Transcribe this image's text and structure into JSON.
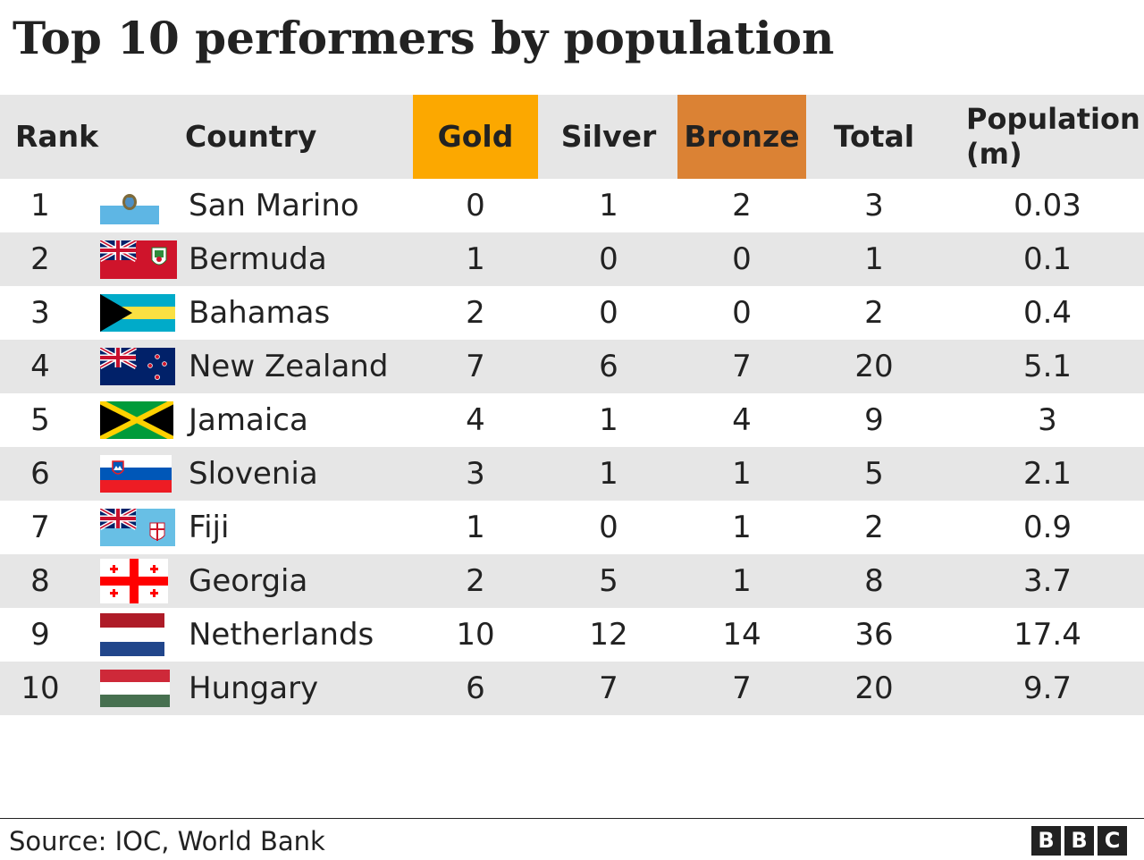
{
  "title": "Top 10 performers by population",
  "headers": {
    "rank": "Rank",
    "country": "Country",
    "gold": "Gold",
    "silver": "Silver",
    "bronze": "Bronze",
    "total": "Total",
    "population_line1": "Population",
    "population_line2": "(m)"
  },
  "colors": {
    "gold_header": "#fca800",
    "bronze_header": "#db8234",
    "row_shade": "#e6e6e6",
    "text": "#222222"
  },
  "chart_data": {
    "type": "table",
    "title": "Top 10 performers by population",
    "columns": [
      "Rank",
      "Country",
      "Gold",
      "Silver",
      "Bronze",
      "Total",
      "Population (m)"
    ],
    "rows": [
      {
        "rank": "1",
        "country": "San Marino",
        "flag": "san-marino-flag",
        "gold": "0",
        "silver": "1",
        "bronze": "2",
        "total": "3",
        "population": "0.03"
      },
      {
        "rank": "2",
        "country": "Bermuda",
        "flag": "bermuda-flag",
        "gold": "1",
        "silver": "0",
        "bronze": "0",
        "total": "1",
        "population": "0.1"
      },
      {
        "rank": "3",
        "country": "Bahamas",
        "flag": "bahamas-flag",
        "gold": "2",
        "silver": "0",
        "bronze": "0",
        "total": "2",
        "population": "0.4"
      },
      {
        "rank": "4",
        "country": "New Zealand",
        "flag": "new-zealand-flag",
        "gold": "7",
        "silver": "6",
        "bronze": "7",
        "total": "20",
        "population": "5.1"
      },
      {
        "rank": "5",
        "country": "Jamaica",
        "flag": "jamaica-flag",
        "gold": "4",
        "silver": "1",
        "bronze": "4",
        "total": "9",
        "population": "3"
      },
      {
        "rank": "6",
        "country": "Slovenia",
        "flag": "slovenia-flag",
        "gold": "3",
        "silver": "1",
        "bronze": "1",
        "total": "5",
        "population": "2.1"
      },
      {
        "rank": "7",
        "country": "Fiji",
        "flag": "fiji-flag",
        "gold": "1",
        "silver": "0",
        "bronze": "1",
        "total": "2",
        "population": "0.9"
      },
      {
        "rank": "8",
        "country": "Georgia",
        "flag": "georgia-flag",
        "gold": "2",
        "silver": "5",
        "bronze": "1",
        "total": "8",
        "population": "3.7"
      },
      {
        "rank": "9",
        "country": "Netherlands",
        "flag": "netherlands-flag",
        "gold": "10",
        "silver": "12",
        "bronze": "14",
        "total": "36",
        "population": "17.4"
      },
      {
        "rank": "10",
        "country": "Hungary",
        "flag": "hungary-flag",
        "gold": "6",
        "silver": "7",
        "bronze": "7",
        "total": "20",
        "population": "9.7"
      }
    ]
  },
  "source": "Source: IOC, World Bank",
  "logo": [
    "B",
    "B",
    "C"
  ]
}
